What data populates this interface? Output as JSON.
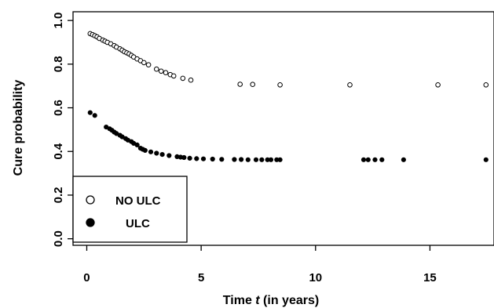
{
  "chart_data": {
    "type": "scatter",
    "xlabel_prefix": "Time ",
    "xlabel_var": "t",
    "xlabel_suffix": " (in years)",
    "ylabel": "Cure probability",
    "xlim": [
      -0.6,
      17.8
    ],
    "ylim": [
      -0.03,
      1.04
    ],
    "xticks": [
      0,
      5,
      10,
      15
    ],
    "yticks": [
      0.0,
      0.2,
      0.4,
      0.6,
      0.8,
      1.0
    ],
    "xtick_labels": [
      "0",
      "5",
      "10",
      "15"
    ],
    "ytick_labels": [
      "0.0",
      "0.2",
      "0.4",
      "0.6",
      "0.8",
      "1.0"
    ],
    "legend": {
      "position": "bottom-left"
    },
    "series": [
      {
        "name": "NO ULC",
        "marker": "open-circle",
        "x": [
          0.15,
          0.25,
          0.35,
          0.45,
          0.55,
          0.7,
          0.8,
          0.9,
          1.05,
          1.2,
          1.3,
          1.45,
          1.55,
          1.65,
          1.75,
          1.85,
          1.95,
          2.05,
          2.2,
          2.35,
          2.5,
          2.7,
          3.05,
          3.25,
          3.45,
          3.65,
          3.8,
          4.2,
          4.55,
          6.7,
          7.25,
          8.45,
          11.5,
          15.35,
          17.45
        ],
        "y": [
          0.94,
          0.935,
          0.93,
          0.925,
          0.918,
          0.91,
          0.905,
          0.9,
          0.893,
          0.885,
          0.878,
          0.87,
          0.864,
          0.857,
          0.852,
          0.847,
          0.84,
          0.833,
          0.824,
          0.816,
          0.807,
          0.797,
          0.777,
          0.768,
          0.761,
          0.752,
          0.746,
          0.735,
          0.727,
          0.708,
          0.707,
          0.705,
          0.705,
          0.705,
          0.705
        ]
      },
      {
        "name": "ULC",
        "marker": "filled-circle",
        "x": [
          0.15,
          0.35,
          0.85,
          1.0,
          1.1,
          1.2,
          1.3,
          1.45,
          1.55,
          1.7,
          1.8,
          1.95,
          2.05,
          2.2,
          2.35,
          2.45,
          2.55,
          2.8,
          3.05,
          3.3,
          3.6,
          3.95,
          4.1,
          4.25,
          4.5,
          4.8,
          5.1,
          5.5,
          5.9,
          6.45,
          6.75,
          7.05,
          7.4,
          7.65,
          7.9,
          8.05,
          8.3,
          8.45,
          12.1,
          12.3,
          12.6,
          12.9,
          13.85,
          17.45
        ],
        "y": [
          0.578,
          0.565,
          0.512,
          0.504,
          0.497,
          0.489,
          0.482,
          0.474,
          0.467,
          0.459,
          0.452,
          0.445,
          0.437,
          0.43,
          0.415,
          0.41,
          0.405,
          0.398,
          0.392,
          0.386,
          0.381,
          0.376,
          0.374,
          0.372,
          0.369,
          0.367,
          0.366,
          0.365,
          0.364,
          0.363,
          0.363,
          0.362,
          0.362,
          0.362,
          0.362,
          0.362,
          0.362,
          0.362,
          0.362,
          0.362,
          0.362,
          0.362,
          0.362,
          0.362
        ]
      }
    ]
  }
}
